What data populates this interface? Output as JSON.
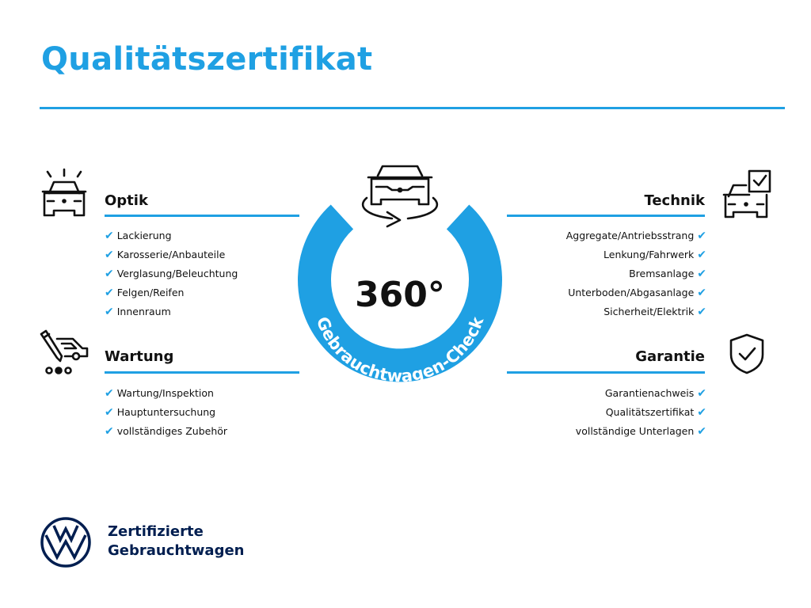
{
  "title": "Qualitätszertifikat",
  "accent_color": "#1fa0e3",
  "brand_color": "#001e50",
  "center": {
    "number": "360°",
    "ring_text": "Gebrauchtwagen-Check",
    "icon": "car-rotate-icon"
  },
  "sections": {
    "optik": {
      "heading": "Optik",
      "icon": "car-lights-icon",
      "items": [
        "Lackierung",
        "Karosserie/Anbauteile",
        "Verglasung/Beleuchtung",
        "Felgen/Reifen",
        "Innenraum"
      ]
    },
    "wartung": {
      "heading": "Wartung",
      "icon": "maintenance-icon",
      "items": [
        "Wartung/Inspektion",
        "Hauptuntersuchung",
        "vollständiges Zubehör"
      ]
    },
    "technik": {
      "heading": "Technik",
      "icon": "car-checklist-icon",
      "items": [
        "Aggregate/Antriebsstrang",
        "Lenkung/Fahrwerk",
        "Bremsanlage",
        "Unterboden/Abgasanlage",
        "Sicherheit/Elektrik"
      ]
    },
    "garantie": {
      "heading": "Garantie",
      "icon": "shield-check-icon",
      "items": [
        "Garantienachweis",
        "Qualitätszertifikat",
        "vollständige Unterlagen"
      ]
    }
  },
  "check_glyph": "✔",
  "footer": {
    "logo": "VW",
    "line1": "Zertifizierte",
    "line2": "Gebrauchtwagen"
  }
}
